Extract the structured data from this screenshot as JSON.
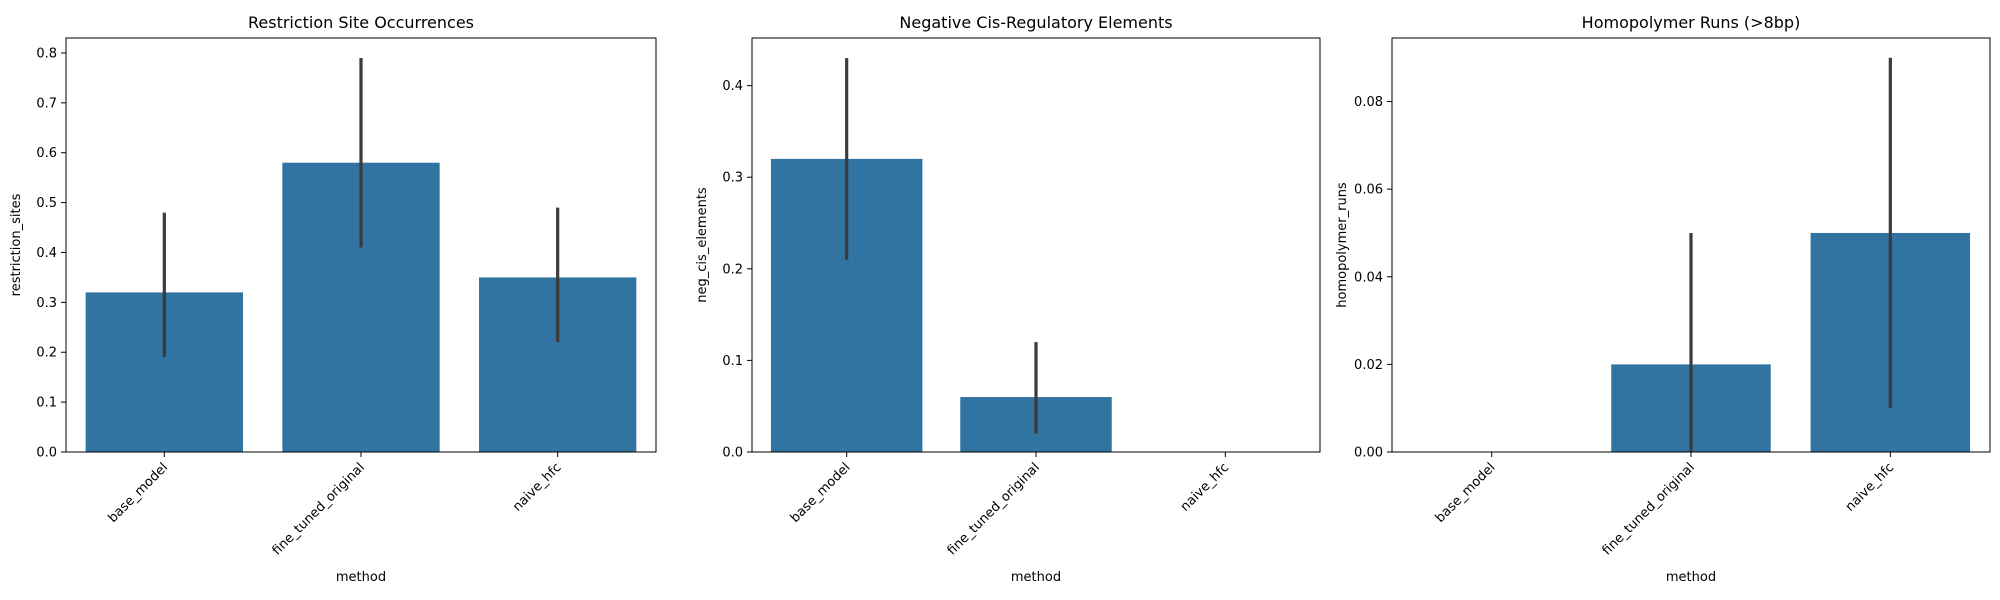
{
  "figure": {
    "background": "#ffffff",
    "bar_color": "#3274a1",
    "error_color": "#3b3b3b"
  },
  "chart_data": [
    {
      "type": "bar",
      "title": "Restriction Site Occurrences",
      "xlabel": "method",
      "ylabel": "restriction_sites",
      "categories": [
        "base_model",
        "fine_tuned_original",
        "naive_hfc"
      ],
      "values": [
        0.32,
        0.58,
        0.35
      ],
      "error_low": [
        0.19,
        0.41,
        0.22
      ],
      "error_high": [
        0.48,
        0.79,
        0.49
      ],
      "ylim": [
        0,
        0.83
      ],
      "yticks": [
        0.0,
        0.1,
        0.2,
        0.3,
        0.4,
        0.5,
        0.6,
        0.7,
        0.8
      ],
      "ytick_labels": [
        "0.0",
        "0.1",
        "0.2",
        "0.3",
        "0.4",
        "0.5",
        "0.6",
        "0.7",
        "0.8"
      ],
      "grid": false
    },
    {
      "type": "bar",
      "title": "Negative Cis-Regulatory Elements",
      "xlabel": "method",
      "ylabel": "neg_cis_elements",
      "categories": [
        "base_model",
        "fine_tuned_original",
        "naive_hfc"
      ],
      "values": [
        0.32,
        0.06,
        0.0
      ],
      "error_low": [
        0.21,
        0.02,
        0.0
      ],
      "error_high": [
        0.43,
        0.12,
        0.0
      ],
      "ylim": [
        0,
        0.452
      ],
      "yticks": [
        0.0,
        0.1,
        0.2,
        0.3,
        0.4
      ],
      "ytick_labels": [
        "0.0",
        "0.1",
        "0.2",
        "0.3",
        "0.4"
      ],
      "grid": false
    },
    {
      "type": "bar",
      "title": "Homopolymer Runs (>8bp)",
      "xlabel": "method",
      "ylabel": "homopolymer_runs",
      "categories": [
        "base_model",
        "fine_tuned_original",
        "naive_hfc"
      ],
      "values": [
        0.0,
        0.02,
        0.05
      ],
      "error_low": [
        0.0,
        0.0,
        0.01
      ],
      "error_high": [
        0.0,
        0.05,
        0.09
      ],
      "ylim": [
        0,
        0.0945
      ],
      "yticks": [
        0.0,
        0.02,
        0.04,
        0.06,
        0.08
      ],
      "ytick_labels": [
        "0.00",
        "0.02",
        "0.04",
        "0.06",
        "0.08"
      ],
      "grid": false
    }
  ]
}
